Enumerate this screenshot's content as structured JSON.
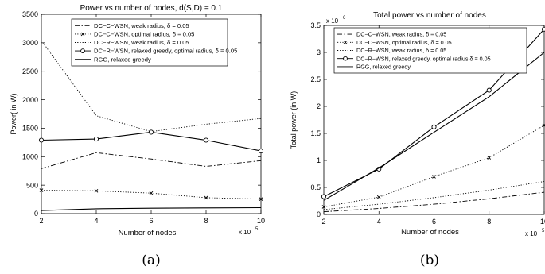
{
  "chart_data": [
    {
      "type": "line",
      "title": "Power vs number of nodes, d(S,D) = 0.1",
      "xlabel": "Number of nodes",
      "ylabel": "Power( in W)",
      "x_multiplier": "x 10",
      "x_multiplier_exp": "5",
      "xlim": [
        2,
        10
      ],
      "ylim": [
        0,
        3500
      ],
      "xticks": [
        "2",
        "4",
        "6",
        "8",
        "10"
      ],
      "yticks": [
        "0",
        "500",
        "1000",
        "1500",
        "2000",
        "2500",
        "3000",
        "3500"
      ],
      "caption": "(a)",
      "x": [
        2,
        4,
        6,
        8,
        10
      ],
      "series": [
        {
          "name": "DC−C−WSN, weak radius, δ = 0.05",
          "style": "dashdot",
          "marker": "none",
          "values": [
            790,
            1070,
            960,
            830,
            930
          ]
        },
        {
          "name": "DC−C−WSN, optimal radius, δ = 0.05",
          "style": "dotted",
          "marker": "x",
          "values": [
            410,
            400,
            360,
            280,
            255
          ]
        },
        {
          "name": "DC−R−WSN, weak radius, δ = 0.05",
          "style": "dotted",
          "marker": "none",
          "values": [
            3040,
            1720,
            1440,
            1570,
            1670
          ]
        },
        {
          "name": "DC−R−WSN, relaxed greedy, optimal radius, δ = 0.05",
          "style": "solid",
          "marker": "o",
          "values": [
            1290,
            1310,
            1430,
            1290,
            1100
          ]
        },
        {
          "name": "RGG, relaxed greedy",
          "style": "solid",
          "marker": "none",
          "values": [
            55,
            85,
            95,
            100,
            105
          ]
        }
      ]
    },
    {
      "type": "line",
      "title": "Total power vs number of nodes",
      "xlabel": "Number of nodes",
      "ylabel": "Total power (in W)",
      "x_multiplier": "x 10",
      "x_multiplier_exp": "5",
      "y_multiplier": "x 10",
      "y_multiplier_exp": "6",
      "xlim": [
        2,
        10
      ],
      "ylim": [
        0,
        3.5
      ],
      "xticks": [
        "2",
        "4",
        "6",
        "8",
        "10"
      ],
      "yticks": [
        "0",
        "0.5",
        "1",
        "1.5",
        "2",
        "2.5",
        "3",
        "3.5"
      ],
      "caption": "(b)",
      "x": [
        2,
        4,
        6,
        8,
        10
      ],
      "series": [
        {
          "name": "DC−C−WSN, weak radius, δ = 0.05",
          "style": "dashdot",
          "marker": "none",
          "values": [
            0.05,
            0.11,
            0.19,
            0.29,
            0.41
          ]
        },
        {
          "name": "DC−C−WSN, optimal radius, δ = 0.05",
          "style": "dotted",
          "marker": "x",
          "values": [
            0.14,
            0.32,
            0.7,
            1.05,
            1.65
          ]
        },
        {
          "name": "DC−R−WSN, weak radius, δ = 0.05",
          "style": "dotted",
          "marker": "none",
          "values": [
            0.09,
            0.19,
            0.31,
            0.45,
            0.61
          ]
        },
        {
          "name": "DC−R−WSN, relaxed greedy, optimal radius,δ = 0.05",
          "style": "solid",
          "marker": "o",
          "values": [
            0.33,
            0.84,
            1.62,
            2.3,
            3.43
          ]
        },
        {
          "name": "RGG, relaxed greedy",
          "style": "solid",
          "marker": "none",
          "values": [
            0.26,
            0.86,
            1.52,
            2.18,
            3.0
          ]
        }
      ]
    }
  ]
}
